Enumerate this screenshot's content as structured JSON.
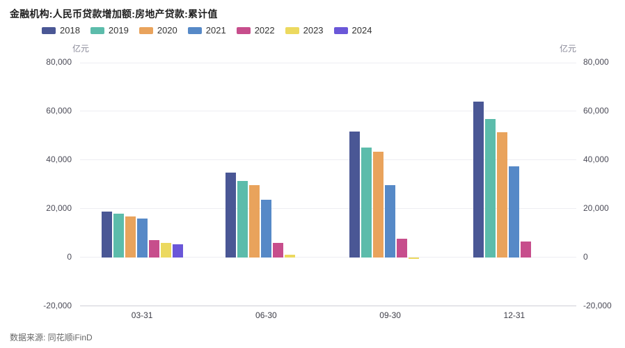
{
  "title": "金融机构:人民币贷款增加额:房地产贷款:累计值",
  "source": "数据来源: 同花顺iFinD",
  "unit_left": "亿元",
  "unit_right": "亿元",
  "chart_data": {
    "type": "bar",
    "title": "金融机构:人民币贷款增加额:房地产贷款:累计值",
    "categories": [
      "03-31",
      "06-30",
      "09-30",
      "12-31"
    ],
    "series": [
      {
        "name": "2018",
        "color": "#4a5795",
        "values": [
          19000,
          34800,
          51800,
          64000
        ]
      },
      {
        "name": "2019",
        "color": "#5cbcab",
        "values": [
          17900,
          31500,
          45200,
          56800
        ]
      },
      {
        "name": "2020",
        "color": "#e9a35c",
        "values": [
          16900,
          29600,
          43400,
          51300
        ]
      },
      {
        "name": "2021",
        "color": "#5689c7",
        "values": [
          16100,
          23800,
          29800,
          37500
        ]
      },
      {
        "name": "2022",
        "color": "#c74e8c",
        "values": [
          7100,
          5900,
          7700,
          6700
        ]
      },
      {
        "name": "2023",
        "color": "#ecd95f",
        "values": [
          5900,
          1200,
          -600,
          null
        ]
      },
      {
        "name": "2024",
        "color": "#6a57d8",
        "values": [
          5300,
          null,
          null,
          null
        ]
      }
    ],
    "ylabel": "亿元",
    "ylim": [
      -20000,
      80000
    ],
    "ytick_step": 20000,
    "yticks_labels": [
      "80,000",
      "60,000",
      "40,000",
      "20,000",
      "0",
      "-20,000"
    ],
    "grid": true,
    "legend_position": "top"
  }
}
